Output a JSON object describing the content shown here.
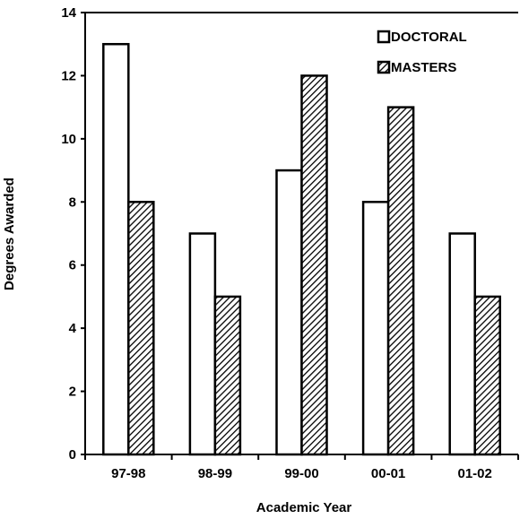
{
  "chart_data": {
    "type": "bar",
    "categories": [
      "97-98",
      "98-99",
      "99-00",
      "00-01",
      "01-02"
    ],
    "series": [
      {
        "name": "DOCTORAL",
        "values": [
          13,
          7,
          9,
          8,
          7
        ],
        "fill": "#ffffff",
        "pattern": "solid"
      },
      {
        "name": "MASTERS",
        "values": [
          8,
          5,
          12,
          11,
          5
        ],
        "fill": "#ffffff",
        "pattern": "diagonal-hatch"
      }
    ],
    "xlabel": "Academic Year",
    "ylabel": "Degrees Awarded",
    "ylim": [
      0,
      14
    ],
    "yticks": [
      "0",
      "2",
      "4",
      "6",
      "8",
      "10",
      "12",
      "14"
    ],
    "grid": false,
    "legend": "top-right",
    "colors": {
      "stroke": "#000000",
      "hatch": "#000000",
      "background": "#ffffff"
    }
  }
}
